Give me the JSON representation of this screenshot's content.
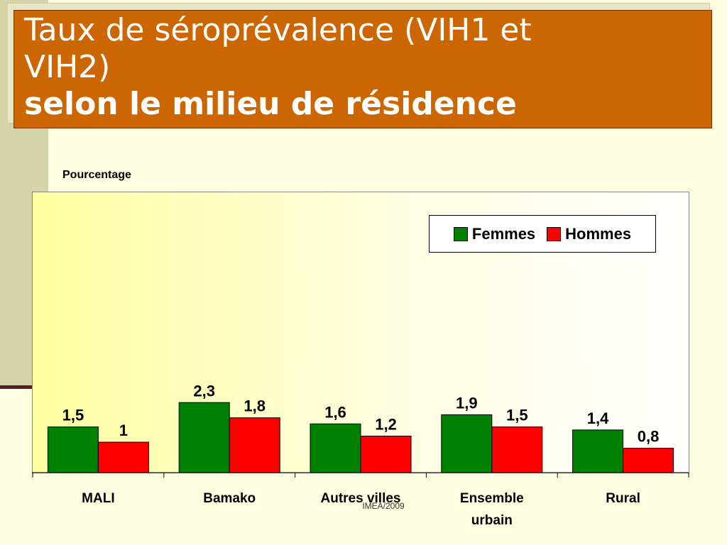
{
  "title": {
    "line1": "Taux de séroprévalence (VIH1 et",
    "line2": "VIH2)",
    "line3": "selon le milieu de résidence"
  },
  "footer": "IMEA/2009",
  "colors": {
    "title_bg": "#cc6600",
    "femmes": "#008000",
    "hommes": "#ff0000"
  },
  "chart_data": {
    "type": "bar",
    "ylabel": "Pourcentage",
    "categories": [
      "MALI",
      "Bamako",
      "Autres villes",
      "Ensemble urbain",
      "Rural"
    ],
    "category_labels": [
      [
        "MALI"
      ],
      [
        "Bamako"
      ],
      [
        "Autres villes"
      ],
      [
        "Ensemble",
        "urbain"
      ],
      [
        "Rural"
      ]
    ],
    "series": [
      {
        "name": "Femmes",
        "values": [
          1.5,
          2.3,
          1.6,
          1.9,
          1.4
        ],
        "labels": [
          "1,5",
          "2,3",
          "1,6",
          "1,9",
          "1,4"
        ],
        "color": "#008000"
      },
      {
        "name": "Hommes",
        "values": [
          1.0,
          1.8,
          1.2,
          1.5,
          0.8
        ],
        "labels": [
          "1",
          "1,8",
          "1,2",
          "1,5",
          "0,8"
        ],
        "color": "#ff0000"
      }
    ],
    "ylim": [
      0,
      9.2
    ],
    "grid": false,
    "legend_position": "top-right"
  }
}
